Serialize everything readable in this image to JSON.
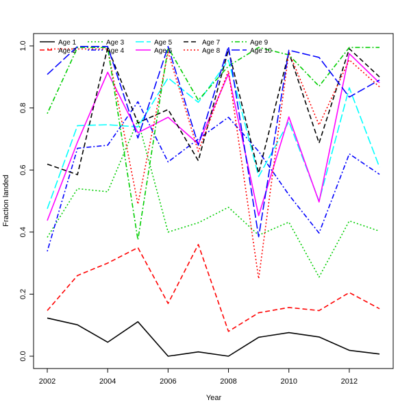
{
  "chart_data": {
    "type": "line",
    "xlabel": "Year",
    "ylabel": "Fraction landed",
    "xlim": [
      2002,
      2013
    ],
    "ylim": [
      0,
      1
    ],
    "x_ticks": [
      2002,
      2004,
      2006,
      2008,
      2010,
      2012
    ],
    "y_ticks": [
      0.0,
      0.2,
      0.4,
      0.6,
      0.8,
      1.0
    ],
    "y_tick_labels": [
      "0.0",
      "0.2",
      "0.4",
      "0.6",
      "0.8",
      "1.0"
    ],
    "legend_position": "top-left",
    "x": [
      2002,
      2003,
      2004,
      2005,
      2006,
      2007,
      2008,
      2009,
      2010,
      2011,
      2012,
      2013
    ],
    "series": [
      {
        "name": "Age 1",
        "color": "#000000",
        "dash": "solid",
        "values": [
          0.123,
          0.101,
          0.045,
          0.111,
          0.0,
          0.014,
          0.0,
          0.061,
          0.076,
          0.062,
          0.019,
          0.007
        ]
      },
      {
        "name": "Age 2",
        "color": "#ff0000",
        "dash": "dashed",
        "values": [
          0.147,
          0.26,
          0.3,
          0.35,
          0.17,
          0.36,
          0.08,
          0.14,
          0.157,
          0.147,
          0.205,
          0.153
        ]
      },
      {
        "name": "Age 3",
        "color": "#00cd00",
        "dash": "dotted",
        "values": [
          0.383,
          0.54,
          0.53,
          0.76,
          0.4,
          0.43,
          0.48,
          0.39,
          0.432,
          0.255,
          0.436,
          0.403
        ]
      },
      {
        "name": "Age 4",
        "color": "#0000ff",
        "dash": "dotdash",
        "values": [
          0.338,
          0.67,
          0.68,
          0.82,
          0.626,
          0.7,
          0.77,
          0.66,
          0.52,
          0.397,
          0.652,
          0.586
        ]
      },
      {
        "name": "Age 5",
        "color": "#00ffff",
        "dash": "longdash",
        "values": [
          0.475,
          0.743,
          0.746,
          0.739,
          0.897,
          0.818,
          0.954,
          0.579,
          0.756,
          0.5,
          0.865,
          0.609
        ]
      },
      {
        "name": "Age 6",
        "color": "#ff00ff",
        "dash": "solid",
        "values": [
          0.437,
          0.69,
          0.915,
          0.72,
          0.77,
          0.684,
          0.91,
          0.453,
          0.771,
          0.497,
          0.975,
          0.881
        ]
      },
      {
        "name": "Age 7",
        "color": "#000000",
        "dash": "dashed",
        "values": [
          0.619,
          0.585,
          0.995,
          0.752,
          0.795,
          0.63,
          0.988,
          0.59,
          0.979,
          0.687,
          0.991,
          0.9
        ]
      },
      {
        "name": "Age 8",
        "color": "#ff0000",
        "dash": "dotted",
        "values": [
          0.99,
          0.99,
          0.99,
          0.49,
          0.98,
          0.66,
          0.92,
          0.25,
          0.98,
          0.745,
          0.955,
          0.868
        ]
      },
      {
        "name": "Age 9",
        "color": "#00cd00",
        "dash": "dotdash",
        "values": [
          0.782,
          0.995,
          0.995,
          0.375,
          0.995,
          0.825,
          0.935,
          0.995,
          0.971,
          0.87,
          0.995,
          0.995
        ]
      },
      {
        "name": "Age 10",
        "color": "#0000ff",
        "dash": "longdash",
        "values": [
          0.908,
          0.998,
          0.998,
          0.703,
          0.998,
          0.68,
          0.998,
          0.385,
          0.986,
          0.963,
          0.835,
          0.89
        ]
      }
    ]
  }
}
